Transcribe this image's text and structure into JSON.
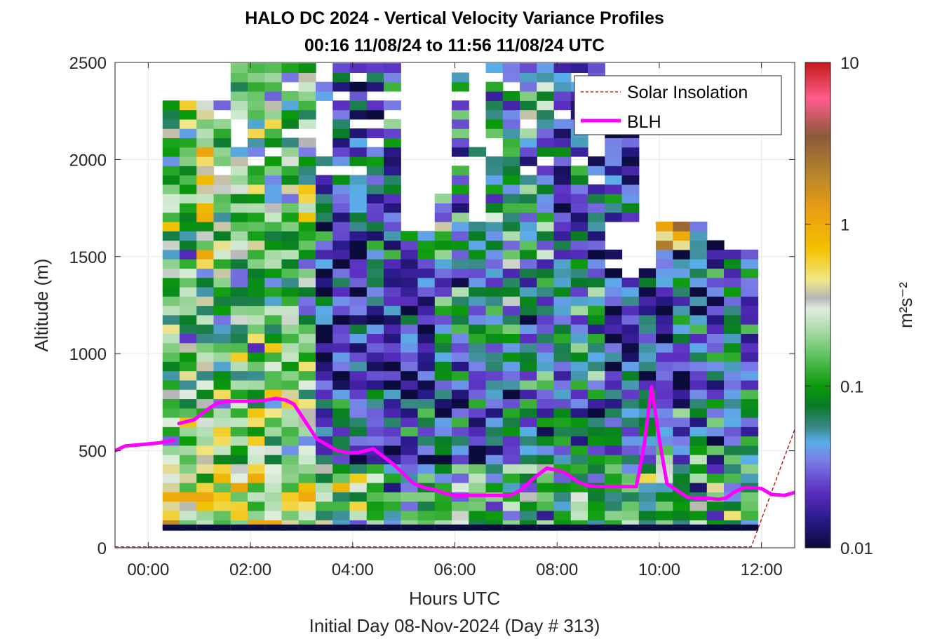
{
  "chart_data": {
    "type": "heatmap",
    "title": "HALO DC 2024 - Vertical Velocity Variance Profiles",
    "subtitle": "00:16 11/08/24 to 11:56 11/08/24  UTC",
    "xlabel": "Hours UTC",
    "xlabel2": "Initial Day 08-Nov-2024 (Day # 313)",
    "ylabel": "Altitude (m)",
    "xlim_hours": [
      -0.65,
      12.65
    ],
    "ylim": [
      0,
      2500
    ],
    "x_ticks": [
      {
        "value": 0,
        "label": "00:00"
      },
      {
        "value": 2,
        "label": "02:00"
      },
      {
        "value": 4,
        "label": "04:00"
      },
      {
        "value": 6,
        "label": "06:00"
      },
      {
        "value": 8,
        "label": "08:00"
      },
      {
        "value": 10,
        "label": "10:00"
      },
      {
        "value": 12,
        "label": "12:00"
      }
    ],
    "y_ticks": [
      {
        "value": 0,
        "label": "0"
      },
      {
        "value": 500,
        "label": "500"
      },
      {
        "value": 1000,
        "label": "1000"
      },
      {
        "value": 1500,
        "label": "1500"
      },
      {
        "value": 2000,
        "label": "2000"
      },
      {
        "value": 2500,
        "label": "2500"
      }
    ],
    "grid": true,
    "legend_location": "top-right",
    "colorbar": {
      "label": "m²s⁻²",
      "scale": "log",
      "range": [
        0.01,
        10
      ],
      "ticks": [
        {
          "value": 0.01,
          "label": "0.01"
        },
        {
          "value": 0.1,
          "label": "0.1"
        },
        {
          "value": 1,
          "label": "1"
        },
        {
          "value": 10,
          "label": "10"
        }
      ],
      "colormap_stops": [
        {
          "value": 0.01,
          "color": "#0b0b3c"
        },
        {
          "value": 0.015,
          "color": "#2a1a8a"
        },
        {
          "value": 0.022,
          "color": "#5a2fc0"
        },
        {
          "value": 0.035,
          "color": "#7a7ee6"
        },
        {
          "value": 0.045,
          "color": "#5aaee8"
        },
        {
          "value": 0.055,
          "color": "#3a8a8a"
        },
        {
          "value": 0.075,
          "color": "#0a7a2a"
        },
        {
          "value": 0.1,
          "color": "#0a9a0a"
        },
        {
          "value": 0.15,
          "color": "#5abf5a"
        },
        {
          "value": 0.22,
          "color": "#a8daa8"
        },
        {
          "value": 0.3,
          "color": "#e0efe0"
        },
        {
          "value": 0.35,
          "color": "#b4b4b4"
        },
        {
          "value": 0.45,
          "color": "#f2e88a"
        },
        {
          "value": 0.7,
          "color": "#f2c200"
        },
        {
          "value": 1.2,
          "color": "#eaa010"
        },
        {
          "value": 2,
          "color": "#b8862a"
        },
        {
          "value": 3.5,
          "color": "#8a5a3a"
        },
        {
          "value": 6,
          "color": "#ff5c8a"
        },
        {
          "value": 10,
          "color": "#c41a1a"
        }
      ]
    },
    "heatmap_grid": {
      "time_start_h": 0.28,
      "time_end_h": 11.93,
      "columns": 35,
      "alt_start_m": 0,
      "alt_end_m": 2500,
      "bin_height_m": 48,
      "note_colors": "cells colored by variance (m2 s-2) sampled pseudo-randomly per regime"
    },
    "series": [
      {
        "name": "Solar Insolation",
        "style": "dashed",
        "color": "#c00000",
        "x": [
          -0.65,
          11.8,
          12.65
        ],
        "y": [
          5,
          5,
          610
        ]
      },
      {
        "name": "BLH",
        "style": "solid",
        "color": "#ff00ff",
        "segments": [
          {
            "x": [
              -0.65,
              -0.45,
              -0.2,
              0.2,
              0.4,
              0.5
            ],
            "y": [
              500,
              525,
              530,
              540,
              548,
              555
            ]
          },
          {
            "x": [
              0.6,
              0.75,
              0.9,
              1.05,
              1.2,
              1.35,
              1.55,
              1.8,
              2.05,
              2.3,
              2.5,
              2.7,
              2.85,
              3.0,
              3.15,
              3.3,
              3.5,
              3.7,
              3.9,
              4.1,
              4.25,
              4.4,
              4.6,
              4.8,
              5.0,
              5.2,
              5.4,
              5.6,
              5.8,
              6.0,
              6.3,
              6.6,
              6.9,
              7.1,
              7.3,
              7.55,
              7.8,
              8.0,
              8.2,
              8.4,
              8.6,
              8.8,
              9.0,
              9.2,
              9.4,
              9.55,
              9.7,
              9.85,
              10.0,
              10.15,
              10.35,
              10.55,
              10.75,
              10.95,
              11.15,
              11.3,
              11.45,
              11.65,
              11.85,
              12.0,
              12.2,
              12.45,
              12.65
            ],
            "y": [
              640,
              650,
              660,
              690,
              720,
              745,
              755,
              755,
              755,
              760,
              770,
              760,
              740,
              680,
              620,
              560,
              530,
              500,
              490,
              490,
              500,
              510,
              470,
              430,
              380,
              330,
              310,
              300,
              280,
              270,
              270,
              270,
              270,
              270,
              300,
              360,
              410,
              400,
              380,
              340,
              320,
              315,
              315,
              315,
              315,
              315,
              520,
              830,
              560,
              330,
              295,
              260,
              255,
              255,
              250,
              255,
              285,
              310,
              310,
              305,
              275,
              270,
              285
            ]
          }
        ]
      }
    ]
  },
  "legend": {
    "items": [
      "Solar Insolation",
      "BLH"
    ]
  }
}
